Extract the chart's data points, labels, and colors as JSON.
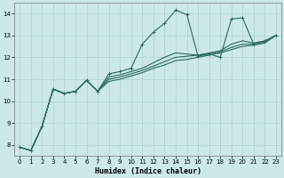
{
  "xlabel": "Humidex (Indice chaleur)",
  "bg_color": "#cce8e8",
  "line_color": "#2a6b5e",
  "grid_color": "#aed0d0",
  "xlim": [
    -0.5,
    23.5
  ],
  "ylim": [
    7.5,
    14.5
  ],
  "xticks": [
    0,
    1,
    2,
    3,
    4,
    5,
    6,
    7,
    8,
    9,
    10,
    11,
    12,
    13,
    14,
    15,
    16,
    17,
    18,
    19,
    20,
    21,
    22,
    23
  ],
  "yticks": [
    8,
    9,
    10,
    11,
    12,
    13,
    14
  ],
  "series": [
    {
      "x": [
        0,
        1,
        2,
        3,
        4,
        5,
        6,
        7,
        8,
        9,
        10,
        11,
        12,
        13,
        14,
        15,
        16,
        17,
        18,
        19,
        20,
        21,
        22,
        23
      ],
      "y": [
        7.9,
        7.75,
        8.85,
        10.55,
        10.35,
        10.45,
        10.95,
        10.45,
        11.25,
        11.35,
        11.5,
        12.6,
        13.15,
        13.55,
        14.15,
        13.95,
        12.05,
        12.15,
        12.0,
        13.75,
        13.8,
        12.6,
        12.75,
        13.0
      ],
      "marker": true
    },
    {
      "x": [
        0,
        1,
        2,
        3,
        4,
        5,
        6,
        7,
        8,
        9,
        10,
        11,
        12,
        13,
        14,
        15,
        16,
        17,
        18,
        19,
        20,
        21,
        22,
        23
      ],
      "y": [
        7.9,
        7.75,
        8.85,
        10.55,
        10.35,
        10.45,
        10.95,
        10.45,
        11.1,
        11.2,
        11.35,
        11.5,
        11.75,
        12.0,
        12.2,
        12.15,
        12.1,
        12.2,
        12.3,
        12.6,
        12.75,
        12.65,
        12.75,
        13.0
      ],
      "marker": false
    },
    {
      "x": [
        0,
        1,
        2,
        3,
        4,
        5,
        6,
        7,
        8,
        9,
        10,
        11,
        12,
        13,
        14,
        15,
        16,
        17,
        18,
        19,
        20,
        21,
        22,
        23
      ],
      "y": [
        7.9,
        7.75,
        8.85,
        10.55,
        10.35,
        10.45,
        10.95,
        10.45,
        11.0,
        11.1,
        11.25,
        11.4,
        11.6,
        11.8,
        12.0,
        12.05,
        12.1,
        12.15,
        12.25,
        12.45,
        12.6,
        12.6,
        12.7,
        13.0
      ],
      "marker": false
    },
    {
      "x": [
        0,
        1,
        2,
        3,
        4,
        5,
        6,
        7,
        8,
        9,
        10,
        11,
        12,
        13,
        14,
        15,
        16,
        17,
        18,
        19,
        20,
        21,
        22,
        23
      ],
      "y": [
        7.9,
        7.75,
        8.85,
        10.55,
        10.35,
        10.45,
        10.95,
        10.45,
        10.9,
        11.0,
        11.15,
        11.3,
        11.5,
        11.65,
        11.85,
        11.9,
        12.0,
        12.1,
        12.2,
        12.35,
        12.5,
        12.55,
        12.65,
        13.0
      ],
      "marker": false
    }
  ]
}
